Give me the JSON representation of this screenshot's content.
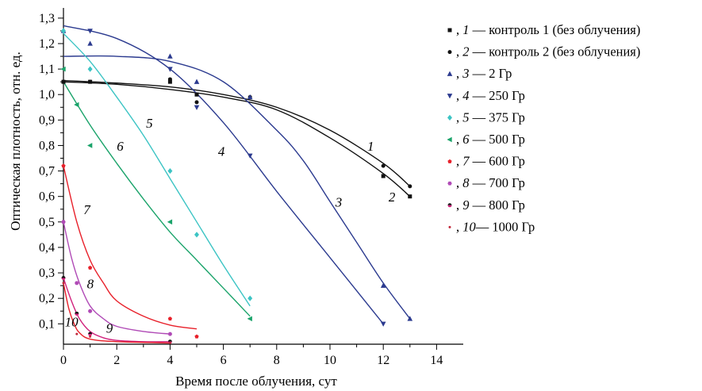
{
  "chart_data": {
    "type": "scatter",
    "title": "",
    "xlabel": "Время после облучения, сут",
    "ylabel": "Оптическая плотность, отн. ед.",
    "xlim": [
      0,
      15
    ],
    "ylim": [
      0.02,
      1.34
    ],
    "xticks": [
      0,
      2,
      4,
      6,
      8,
      10,
      12,
      14
    ],
    "xtick_labels": [
      "0",
      "2",
      "4",
      "6",
      "8",
      "10",
      "12",
      "14"
    ],
    "yticks": [
      0.1,
      0.2,
      0.3,
      0.4,
      0.5,
      0.6,
      0.7,
      0.8,
      0.9,
      1.0,
      1.1,
      1.2,
      1.3
    ],
    "ytick_labels": [
      "0,1",
      "0,2",
      "0,3",
      "0,4",
      "0,5",
      "0,6",
      "0,7",
      "0,8",
      "0,9",
      "1,0",
      "1,1",
      "1,2",
      "1,3"
    ],
    "grid": false,
    "legend_position": "right",
    "series": [
      {
        "num": "1",
        "sep": " — ",
        "name": "контроль 1 (без облучения)",
        "color": "#111111",
        "line_color": "#111111",
        "marker": "square",
        "marker_size": 5,
        "points": [
          [
            0,
            1.05
          ],
          [
            1,
            1.05
          ],
          [
            4,
            1.05
          ],
          [
            5,
            1.0
          ],
          [
            12,
            0.68
          ],
          [
            13,
            0.6
          ]
        ],
        "curve": [
          [
            0,
            1.055
          ],
          [
            2,
            1.045
          ],
          [
            4,
            1.03
          ],
          [
            6,
            1.0
          ],
          [
            8,
            0.95
          ],
          [
            10,
            0.86
          ],
          [
            12,
            0.73
          ],
          [
            13,
            0.64
          ]
        ],
        "curve_label": "1",
        "curve_label_pos": [
          11.4,
          0.78
        ]
      },
      {
        "num": "2",
        "sep": " — ",
        "name": "контроль 2 (без облучения)",
        "color": "#111111",
        "line_color": "#111111",
        "marker": "circle",
        "marker_size": 5,
        "points": [
          [
            0,
            1.05
          ],
          [
            1,
            1.05
          ],
          [
            4,
            1.06
          ],
          [
            5,
            0.97
          ],
          [
            7,
            0.99
          ],
          [
            12,
            0.72
          ],
          [
            13,
            0.64
          ]
        ],
        "curve": [
          [
            0,
            1.05
          ],
          [
            2,
            1.04
          ],
          [
            4,
            1.02
          ],
          [
            6,
            0.99
          ],
          [
            8,
            0.94
          ],
          [
            10,
            0.83
          ],
          [
            12,
            0.69
          ],
          [
            13,
            0.6
          ]
        ],
        "curve_label": "2",
        "curve_label_pos": [
          12.2,
          0.58
        ]
      },
      {
        "num": "3",
        "sep": " — ",
        "name": "2 Гр",
        "color": "#2b3a8f",
        "line_color": "#2b3a8f",
        "marker": "triangle-up",
        "marker_size": 6,
        "points": [
          [
            0,
            1.25
          ],
          [
            1,
            1.2
          ],
          [
            4,
            1.15
          ],
          [
            5,
            1.05
          ],
          [
            7,
            0.99
          ],
          [
            12,
            0.25
          ],
          [
            13,
            0.12
          ]
        ],
        "curve": [
          [
            0,
            1.15
          ],
          [
            2,
            1.15
          ],
          [
            4,
            1.13
          ],
          [
            6,
            1.05
          ],
          [
            8,
            0.86
          ],
          [
            9,
            0.74
          ],
          [
            10,
            0.58
          ],
          [
            11,
            0.42
          ],
          [
            12,
            0.26
          ],
          [
            13,
            0.12
          ]
        ],
        "curve_label": "3",
        "curve_label_pos": [
          10.2,
          0.56
        ]
      },
      {
        "num": "4",
        "sep": " — ",
        "name": "250 Гр",
        "color": "#2b3a8f",
        "line_color": "#2b3a8f",
        "marker": "triangle-down",
        "marker_size": 6,
        "points": [
          [
            1,
            1.25
          ],
          [
            4,
            1.1
          ],
          [
            5,
            0.95
          ],
          [
            7,
            0.76
          ],
          [
            12,
            0.1
          ]
        ],
        "curve": [
          [
            0,
            1.27
          ],
          [
            2,
            1.22
          ],
          [
            4,
            1.1
          ],
          [
            6,
            0.89
          ],
          [
            8,
            0.62
          ],
          [
            10,
            0.36
          ],
          [
            12,
            0.1
          ]
        ],
        "curve_label": "4",
        "curve_label_pos": [
          5.8,
          0.76
        ]
      },
      {
        "num": "5",
        "sep": " — ",
        "name": "375 Гр",
        "color": "#3cc4c4",
        "line_color": "#3cc4c4",
        "marker": "diamond",
        "marker_size": 6,
        "points": [
          [
            0,
            1.25
          ],
          [
            1,
            1.1
          ],
          [
            4,
            0.7
          ],
          [
            5,
            0.45
          ],
          [
            7,
            0.2
          ]
        ],
        "curve": [
          [
            0,
            1.24
          ],
          [
            1,
            1.13
          ],
          [
            2,
            0.99
          ],
          [
            3,
            0.84
          ],
          [
            4,
            0.67
          ],
          [
            5,
            0.5
          ],
          [
            6,
            0.33
          ],
          [
            7,
            0.17
          ]
        ],
        "curve_label": "5",
        "curve_label_pos": [
          3.1,
          0.87
        ]
      },
      {
        "num": "6",
        "sep": " — ",
        "name": "500 Гр",
        "color": "#1aa36a",
        "line_color": "#1aa36a",
        "marker": "triangle-left",
        "marker_size": 6,
        "points": [
          [
            0,
            1.1
          ],
          [
            0.5,
            0.96
          ],
          [
            1,
            0.8
          ],
          [
            4,
            0.5
          ],
          [
            7,
            0.12
          ]
        ],
        "curve": [
          [
            0,
            1.05
          ],
          [
            1,
            0.88
          ],
          [
            2,
            0.73
          ],
          [
            3,
            0.59
          ],
          [
            4,
            0.46
          ],
          [
            5,
            0.35
          ],
          [
            6,
            0.24
          ],
          [
            7,
            0.13
          ]
        ],
        "curve_label": "6",
        "curve_label_pos": [
          2.0,
          0.78
        ]
      },
      {
        "num": "7",
        "sep": " — ",
        "name": "600 Гр",
        "color": "#e8202a",
        "line_color": "#e8202a",
        "marker": "pentagon",
        "marker_size": 5,
        "points": [
          [
            0,
            0.72
          ],
          [
            1,
            0.32
          ],
          [
            4,
            0.12
          ],
          [
            5,
            0.05
          ]
        ],
        "curve": [
          [
            0,
            0.72
          ],
          [
            0.5,
            0.5
          ],
          [
            1,
            0.35
          ],
          [
            1.5,
            0.26
          ],
          [
            2,
            0.19
          ],
          [
            3,
            0.13
          ],
          [
            4,
            0.095
          ],
          [
            5,
            0.08
          ]
        ],
        "curve_label": "7",
        "curve_label_pos": [
          0.75,
          0.53
        ]
      },
      {
        "num": "8",
        "sep": " — ",
        "name": "700 Гр",
        "color": "#b04ab6",
        "line_color": "#b04ab6",
        "marker": "hexagon",
        "marker_size": 5,
        "points": [
          [
            0,
            0.5
          ],
          [
            0.5,
            0.26
          ],
          [
            1,
            0.15
          ],
          [
            4,
            0.06
          ]
        ],
        "curve": [
          [
            0,
            0.5
          ],
          [
            0.3,
            0.36
          ],
          [
            0.6,
            0.26
          ],
          [
            1,
            0.17
          ],
          [
            1.5,
            0.12
          ],
          [
            2,
            0.09
          ],
          [
            3,
            0.07
          ],
          [
            4,
            0.06
          ]
        ],
        "curve_label": "8",
        "curve_label_pos": [
          0.88,
          0.24
        ]
      },
      {
        "num": "9",
        "sep": " — ",
        "name": "800 Гр",
        "color": "#111111",
        "line_color": "#d0217c",
        "marker": "circle-split",
        "marker_size": 5,
        "points": [
          [
            0,
            0.28
          ],
          [
            0.5,
            0.14
          ],
          [
            1,
            0.06
          ],
          [
            4,
            0.03
          ]
        ],
        "curve": [
          [
            0,
            0.28
          ],
          [
            0.3,
            0.19
          ],
          [
            0.6,
            0.12
          ],
          [
            1,
            0.07
          ],
          [
            1.5,
            0.045
          ],
          [
            2,
            0.035
          ],
          [
            3,
            0.03
          ],
          [
            4,
            0.03
          ]
        ],
        "curve_label": "9",
        "curve_label_pos": [
          1.6,
          0.065
        ]
      },
      {
        "num": "10",
        "sep": "—",
        "name": " 1000 Гр",
        "color": "#c2283a",
        "line_color": "#e8202a",
        "marker": "dot",
        "marker_size": 3,
        "points": [
          [
            0,
            0.26
          ],
          [
            0.5,
            0.06
          ],
          [
            1,
            0.05
          ],
          [
            4,
            0.025
          ]
        ],
        "curve": [
          [
            0,
            0.26
          ],
          [
            0.2,
            0.16
          ],
          [
            0.4,
            0.1
          ],
          [
            0.6,
            0.065
          ],
          [
            1,
            0.04
          ],
          [
            2,
            0.03
          ],
          [
            4,
            0.025
          ]
        ],
        "curve_label": "10",
        "curve_label_pos": [
          0.05,
          0.09
        ]
      }
    ]
  }
}
